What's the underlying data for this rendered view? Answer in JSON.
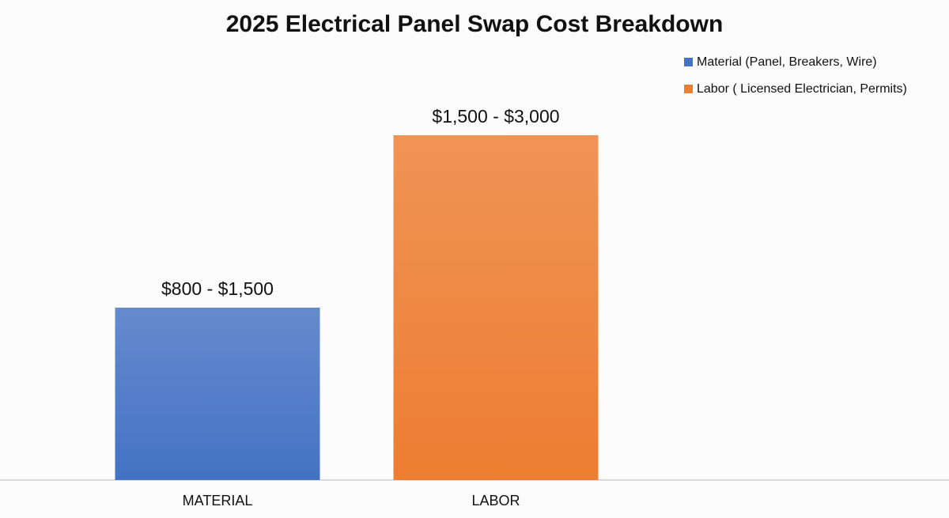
{
  "chart_data": {
    "type": "bar",
    "title": "2025 Electrical Panel Swap Cost Breakdown",
    "categories": [
      "MATERIAL",
      "LABOR"
    ],
    "series": [
      {
        "name": "Material (Panel, Breakers, Wire)",
        "color": "#4472c4",
        "values": [
          1500,
          null
        ],
        "value_labels": [
          "$800 - $1,500",
          null
        ]
      },
      {
        "name": "Labor ( Licensed Electrician, Permits)",
        "color": "#ed7d31",
        "values": [
          null,
          3000
        ],
        "value_labels": [
          null,
          "$1,500 - $3,000"
        ]
      }
    ],
    "legend": "top-right"
  }
}
